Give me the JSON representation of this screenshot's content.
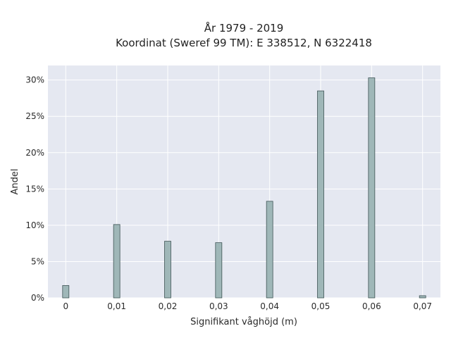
{
  "chart_data": {
    "type": "bar",
    "title_lines": [
      "År 1979 - 2019",
      "Koordinat (Sweref 99 TM): E 338512, N 6322418"
    ],
    "xlabel": "Signifikant våghöjd (m)",
    "ylabel": "Andel",
    "x": [
      0,
      0.01,
      0.02,
      0.03,
      0.04,
      0.05,
      0.06,
      0.07
    ],
    "x_tick_labels": [
      "0",
      "0,01",
      "0,02",
      "0,03",
      "0,04",
      "0,05",
      "0,06",
      "0,07"
    ],
    "values": [
      1.7,
      10.1,
      7.8,
      7.6,
      13.3,
      28.5,
      30.3,
      0.3
    ],
    "y_ticks": [
      0,
      5,
      10,
      15,
      20,
      25,
      30
    ],
    "y_tick_labels": [
      "0%",
      "5%",
      "10%",
      "15%",
      "20%",
      "25%",
      "30%"
    ],
    "xlim": [
      -0.0035,
      0.0735
    ],
    "ylim": [
      0,
      32
    ],
    "grid": true,
    "colors": {
      "bar_fill": "#9fb7b8",
      "bar_stroke": "#3f5455",
      "plot_bg": "#e5e8f1",
      "grid": "#ffffff"
    }
  }
}
